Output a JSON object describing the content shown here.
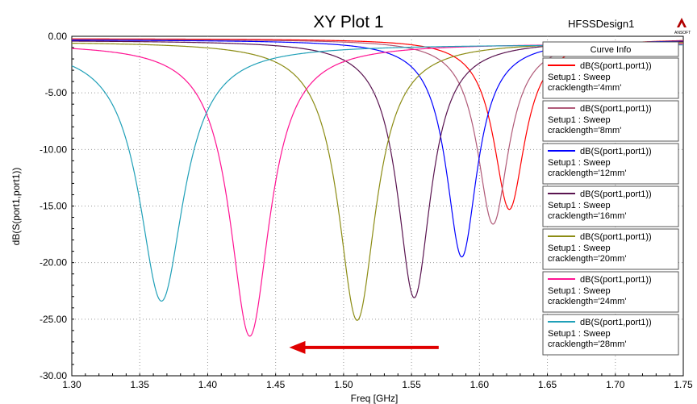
{
  "chart_data": {
    "type": "line",
    "title": "XY Plot 1",
    "design_name": "HFSSDesign1",
    "logo_text": "ANSOFT",
    "xlabel": "Freq [GHz]",
    "ylabel": "dB(S(port1,port1))",
    "xlim": [
      1.3,
      1.75
    ],
    "ylim": [
      -30,
      0
    ],
    "x_ticks": [
      "1.30",
      "1.35",
      "1.40",
      "1.45",
      "1.50",
      "1.55",
      "1.60",
      "1.65",
      "1.70",
      "1.75"
    ],
    "y_ticks": [
      "0.00",
      "-5.00",
      "-10.00",
      "-15.00",
      "-20.00",
      "-25.00",
      "-30.00"
    ],
    "grid": "dotted",
    "legend_title": "Curve Info",
    "legend_position": "top-right",
    "series": [
      {
        "name": "dB(S(port1,port1))",
        "setup": "Setup1 : Sweep",
        "param": "cracklength='4mm'",
        "color": "#ff0000",
        "min_freq": 1.622,
        "min_db": -15.3,
        "baseline": -0.2,
        "width": 0.014
      },
      {
        "name": "dB(S(port1,port1))",
        "setup": "Setup1 : Sweep",
        "param": "cracklength='8mm'",
        "color": "#b05a78",
        "min_freq": 1.61,
        "min_db": -16.6,
        "baseline": -0.25,
        "width": 0.014
      },
      {
        "name": "dB(S(port1,port1))",
        "setup": "Setup1 : Sweep",
        "param": "cracklength='12mm'",
        "color": "#0000ff",
        "min_freq": 1.587,
        "min_db": -19.5,
        "baseline": -0.3,
        "width": 0.014
      },
      {
        "name": "dB(S(port1,port1))",
        "setup": "Setup1 : Sweep",
        "param": "cracklength='16mm'",
        "color": "#5a1450",
        "min_freq": 1.552,
        "min_db": -23.1,
        "baseline": -0.35,
        "width": 0.015
      },
      {
        "name": "dB(S(port1,port1))",
        "setup": "Setup1 : Sweep",
        "param": "cracklength='20mm'",
        "color": "#8c8c14",
        "min_freq": 1.51,
        "min_db": -25.1,
        "baseline": -0.45,
        "width": 0.017
      },
      {
        "name": "dB(S(port1,port1))",
        "setup": "Setup1 : Sweep",
        "param": "cracklength='24mm'",
        "color": "#ff1493",
        "min_freq": 1.431,
        "min_db": -26.5,
        "baseline": -0.6,
        "width": 0.018
      },
      {
        "name": "dB(S(port1,port1))",
        "setup": "Setup1 : Sweep",
        "param": "cracklength='28mm'",
        "color": "#20a0b8",
        "min_freq": 1.366,
        "min_db": -23.4,
        "baseline": -0.7,
        "width": 0.02
      }
    ],
    "annotation": {
      "type": "arrow",
      "direction": "left",
      "color": "#e00000",
      "from_freq": 1.57,
      "to_freq": 1.46,
      "at_db": -27.5
    }
  }
}
